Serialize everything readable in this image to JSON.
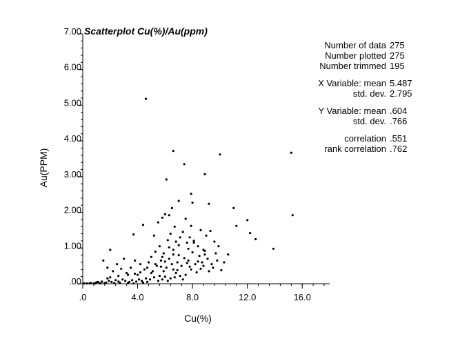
{
  "chart_data": {
    "type": "scatter",
    "title": "Scatterplot Cu(%)/Au(ppm)",
    "xlabel": "Cu(%)",
    "ylabel": "Au(PPM)",
    "xlim": [
      0,
      18
    ],
    "ylim": [
      0,
      7
    ],
    "x_ticks": [
      {
        "value": 0,
        "label": ".0"
      },
      {
        "value": 4,
        "label": "4.0"
      },
      {
        "value": 8,
        "label": "8.0"
      },
      {
        "value": 12,
        "label": "12.0"
      },
      {
        "value": 16,
        "label": "16.0"
      }
    ],
    "y_ticks": [
      {
        "value": 0,
        "label": ".00"
      },
      {
        "value": 1,
        "label": "1.00"
      },
      {
        "value": 2,
        "label": "2.00"
      },
      {
        "value": 3,
        "label": "3.00"
      },
      {
        "value": 4,
        "label": "4.00"
      },
      {
        "value": 5,
        "label": "5.00"
      },
      {
        "value": 6,
        "label": "6.00"
      },
      {
        "value": 7,
        "label": "7.00"
      }
    ],
    "stats": [
      {
        "label": "Number of data",
        "value": "275"
      },
      {
        "label": "Number plotted",
        "value": "275"
      },
      {
        "label": "Number trimmed",
        "value": "195"
      },
      {
        "label": "X Variable: mean",
        "value": "5.487"
      },
      {
        "label": "std. dev.",
        "value": "2.795"
      },
      {
        "label": "Y Variable: mean",
        "value": ".604"
      },
      {
        "label": "std. dev.",
        "value": ".766"
      },
      {
        "label": "correlation",
        "value": ".551"
      },
      {
        "label": "rank correlation",
        "value": ".762"
      }
    ],
    "points": [
      [
        4.6,
        5.18
      ],
      [
        6.6,
        3.72
      ],
      [
        7.4,
        3.35
      ],
      [
        10.0,
        3.62
      ],
      [
        15.2,
        3.67
      ],
      [
        6.1,
        2.92
      ],
      [
        8.9,
        3.07
      ],
      [
        6.5,
        2.12
      ],
      [
        7.0,
        2.32
      ],
      [
        7.9,
        2.52
      ],
      [
        8.0,
        2.27
      ],
      [
        9.2,
        2.24
      ],
      [
        11.0,
        2.12
      ],
      [
        11.2,
        1.62
      ],
      [
        12.0,
        1.78
      ],
      [
        12.2,
        1.42
      ],
      [
        12.6,
        1.25
      ],
      [
        13.9,
        0.98
      ],
      [
        15.3,
        1.92
      ],
      [
        10.6,
        0.82
      ],
      [
        10.1,
        0.38
      ],
      [
        4.4,
        1.65
      ],
      [
        3.7,
        1.38
      ],
      [
        5.5,
        1.72
      ],
      [
        5.8,
        1.85
      ],
      [
        6.0,
        1.95
      ],
      [
        6.3,
        1.92
      ],
      [
        6.7,
        1.6
      ],
      [
        7.3,
        1.45
      ],
      [
        7.5,
        1.82
      ],
      [
        7.6,
        1.15
      ],
      [
        7.8,
        1.3
      ],
      [
        7.9,
        1.62
      ],
      [
        8.1,
        1.2
      ],
      [
        8.4,
        1.05
      ],
      [
        8.6,
        1.5
      ],
      [
        8.8,
        0.95
      ],
      [
        9.0,
        1.35
      ],
      [
        9.3,
        1.48
      ],
      [
        9.6,
        1.18
      ],
      [
        9.7,
        0.85
      ],
      [
        9.9,
        1.05
      ],
      [
        5.2,
        1.35
      ],
      [
        5.6,
        1.05
      ],
      [
        6.2,
        1.22
      ],
      [
        6.4,
        1.4
      ],
      [
        6.8,
        1.18
      ],
      [
        7.1,
        1.3
      ],
      [
        2.0,
        0.95
      ],
      [
        1.5,
        0.65
      ],
      [
        1.8,
        0.45
      ],
      [
        2.2,
        0.35
      ],
      [
        2.5,
        0.55
      ],
      [
        2.8,
        0.42
      ],
      [
        3.0,
        0.7
      ],
      [
        3.2,
        0.3
      ],
      [
        3.5,
        0.45
      ],
      [
        3.8,
        0.65
      ],
      [
        4.0,
        0.25
      ],
      [
        4.2,
        0.55
      ],
      [
        4.5,
        0.4
      ],
      [
        4.8,
        0.6
      ],
      [
        5.0,
        0.75
      ],
      [
        5.1,
        0.35
      ],
      [
        5.3,
        0.9
      ],
      [
        5.4,
        0.5
      ],
      [
        5.7,
        0.65
      ],
      [
        5.9,
        0.85
      ],
      [
        6.1,
        0.45
      ],
      [
        6.3,
        0.7
      ],
      [
        6.5,
        0.55
      ],
      [
        6.6,
        0.95
      ],
      [
        6.9,
        0.6
      ],
      [
        7.0,
        0.8
      ],
      [
        7.2,
        0.5
      ],
      [
        7.4,
        0.72
      ],
      [
        7.7,
        0.65
      ],
      [
        8.0,
        0.88
      ],
      [
        8.2,
        0.55
      ],
      [
        8.5,
        0.78
      ],
      [
        8.7,
        0.6
      ],
      [
        8.9,
        0.92
      ],
      [
        9.1,
        0.7
      ],
      [
        9.4,
        0.55
      ],
      [
        9.8,
        0.65
      ],
      [
        10.3,
        0.6
      ],
      [
        7.9,
        0.4
      ],
      [
        8.3,
        0.32
      ],
      [
        6.8,
        0.3
      ],
      [
        7.5,
        0.25
      ],
      [
        6.0,
        0.2
      ],
      [
        6.4,
        0.15
      ],
      [
        5.6,
        0.22
      ],
      [
        5.2,
        0.18
      ],
      [
        4.9,
        0.12
      ],
      [
        4.6,
        0.15
      ],
      [
        4.3,
        0.08
      ],
      [
        4.1,
        0.12
      ],
      [
        3.9,
        0.06
      ],
      [
        3.6,
        0.1
      ],
      [
        3.4,
        0.05
      ],
      [
        3.1,
        0.08
      ],
      [
        2.9,
        0.12
      ],
      [
        2.6,
        0.06
      ],
      [
        2.4,
        0.1
      ],
      [
        2.1,
        0.05
      ],
      [
        1.9,
        0.08
      ],
      [
        1.7,
        0.03
      ],
      [
        1.4,
        0.06
      ],
      [
        1.2,
        0.02
      ],
      [
        1.0,
        0.04
      ],
      [
        0.8,
        0.01
      ],
      [
        0.5,
        0.01
      ],
      [
        0.3,
        0.01
      ],
      [
        0.1,
        0.01
      ],
      [
        0.6,
        0.02
      ],
      [
        0.9,
        0.01
      ],
      [
        1.1,
        0.05
      ],
      [
        1.3,
        0.01
      ],
      [
        1.6,
        0.02
      ],
      [
        2.3,
        0.02
      ],
      [
        2.7,
        0.03
      ],
      [
        3.3,
        0.02
      ],
      [
        3.7,
        0.01
      ],
      [
        4.4,
        0.03
      ],
      [
        4.7,
        0.05
      ],
      [
        5.5,
        0.08
      ],
      [
        5.8,
        0.12
      ],
      [
        6.2,
        0.08
      ],
      [
        6.7,
        0.18
      ],
      [
        7.1,
        0.22
      ],
      [
        7.3,
        0.12
      ],
      [
        5.0,
        0.3
      ],
      [
        5.9,
        0.35
      ],
      [
        6.6,
        0.4
      ],
      [
        7.8,
        0.48
      ],
      [
        8.6,
        0.42
      ],
      [
        9.2,
        0.35
      ],
      [
        4.2,
        0.32
      ],
      [
        3.8,
        0.28
      ],
      [
        3.3,
        0.25
      ],
      [
        2.6,
        0.22
      ],
      [
        2.0,
        0.18
      ],
      [
        1.8,
        0.15
      ],
      [
        6.9,
        0.38
      ],
      [
        7.6,
        0.58
      ],
      [
        8.4,
        0.62
      ],
      [
        5.7,
        0.48
      ],
      [
        6.0,
        0.62
      ],
      [
        4.7,
        0.45
      ],
      [
        5.3,
        0.55
      ],
      [
        8.8,
        0.5
      ],
      [
        9.5,
        0.45
      ],
      [
        6.3,
        1.02
      ],
      [
        7.0,
        1.08
      ],
      [
        7.7,
        0.98
      ],
      [
        8.1,
        1.15
      ],
      [
        8.9,
        0.82
      ],
      [
        5.8,
        0.75
      ],
      [
        6.6,
        0.82
      ]
    ]
  }
}
